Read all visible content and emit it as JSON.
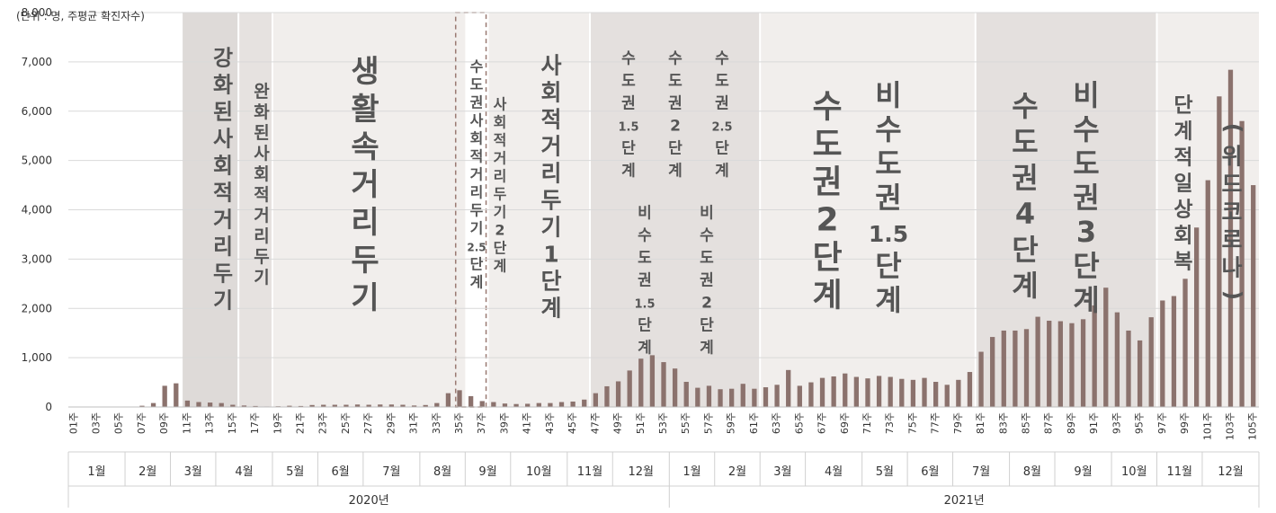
{
  "chart_data": {
    "type": "bar",
    "unit_label": "(단위 : 명, 주평균 확진자수)",
    "ylim": [
      0,
      8000
    ],
    "y_ticks": [
      "0",
      "1,000",
      "2,000",
      "3,000",
      "4,000",
      "5,000",
      "6,000",
      "7,000",
      "8,000"
    ],
    "bar_color": "#8b726d",
    "categories": [
      "01주",
      "02주",
      "03주",
      "04주",
      "05주",
      "06주",
      "07주",
      "08주",
      "09주",
      "10주",
      "11주",
      "12주",
      "13주",
      "14주",
      "15주",
      "16주",
      "17주",
      "18주",
      "19주",
      "20주",
      "21주",
      "22주",
      "23주",
      "24주",
      "25주",
      "26주",
      "27주",
      "28주",
      "29주",
      "30주",
      "31주",
      "32주",
      "33주",
      "34주",
      "35주",
      "36주",
      "37주",
      "38주",
      "39주",
      "40주",
      "41주",
      "42주",
      "43주",
      "44주",
      "45주",
      "46주",
      "47주",
      "48주",
      "49주",
      "50주",
      "51주",
      "52주",
      "53주",
      "54주",
      "55주",
      "56주",
      "57주",
      "58주",
      "59주",
      "60주",
      "61주",
      "62주",
      "63주",
      "64주",
      "65주",
      "66주",
      "67주",
      "68주",
      "69주",
      "70주",
      "71주",
      "72주",
      "73주",
      "74주",
      "75주",
      "76주",
      "77주",
      "78주",
      "79주",
      "80주",
      "81주",
      "82주",
      "83주",
      "84주",
      "85주",
      "86주",
      "87주",
      "88주",
      "89주",
      "90주",
      "91주",
      "92주",
      "93주",
      "94주",
      "95주",
      "96주",
      "97주",
      "98주",
      "99주",
      "100주",
      "101주",
      "102주",
      "103주",
      "104주",
      "105주"
    ],
    "values": [
      0,
      0,
      3,
      5,
      3,
      5,
      25,
      80,
      430,
      480,
      130,
      100,
      90,
      80,
      45,
      30,
      20,
      10,
      15,
      25,
      20,
      40,
      45,
      45,
      45,
      50,
      45,
      50,
      50,
      45,
      30,
      40,
      80,
      280,
      340,
      220,
      120,
      100,
      70,
      60,
      65,
      80,
      80,
      100,
      110,
      150,
      280,
      420,
      520,
      740,
      980,
      1050,
      910,
      780,
      510,
      390,
      430,
      360,
      370,
      470,
      370,
      400,
      450,
      750,
      430,
      500,
      590,
      620,
      680,
      610,
      580,
      630,
      610,
      570,
      550,
      590,
      510,
      450,
      550,
      710,
      1120,
      1420,
      1550,
      1550,
      1580,
      1830,
      1750,
      1740,
      1700,
      1780,
      2060,
      2420,
      1920,
      1550,
      1350,
      1820,
      2160,
      2250,
      2600,
      3640,
      4600,
      6300,
      6840,
      5800,
      4500
    ],
    "tick_labels_shown": [
      "01주",
      "03주",
      "05주",
      "07주",
      "09주",
      "11주",
      "13주",
      "15주",
      "17주",
      "19주",
      "21주",
      "23주",
      "25주",
      "27주",
      "29주",
      "31주",
      "33주",
      "35주",
      "37주",
      "39주",
      "41주",
      "43주",
      "45주",
      "47주",
      "49주",
      "51주",
      "53주",
      "55주",
      "57주",
      "59주",
      "61주",
      "63주",
      "65주",
      "67주",
      "69주",
      "71주",
      "73주",
      "75주",
      "77주",
      "79주",
      "81주",
      "83주",
      "85주",
      "87주",
      "89주",
      "91주",
      "93주",
      "95주",
      "97주",
      "99주",
      "101주",
      "103주",
      "105주"
    ],
    "months": [
      {
        "label": "1월",
        "from": 1,
        "to": 5
      },
      {
        "label": "2월",
        "from": 6,
        "to": 9
      },
      {
        "label": "3월",
        "from": 10,
        "to": 13
      },
      {
        "label": "4월",
        "from": 14,
        "to": 18
      },
      {
        "label": "5월",
        "from": 19,
        "to": 22
      },
      {
        "label": "6월",
        "from": 23,
        "to": 26
      },
      {
        "label": "7월",
        "from": 27,
        "to": 31
      },
      {
        "label": "8월",
        "from": 32,
        "to": 35
      },
      {
        "label": "9월",
        "from": 36,
        "to": 39
      },
      {
        "label": "10월",
        "from": 40,
        "to": 44
      },
      {
        "label": "11월",
        "from": 45,
        "to": 48
      },
      {
        "label": "12월",
        "from": 49,
        "to": 53
      },
      {
        "label": "1월",
        "from": 54,
        "to": 57
      },
      {
        "label": "2월",
        "from": 58,
        "to": 61
      },
      {
        "label": "3월",
        "from": 62,
        "to": 65
      },
      {
        "label": "4월",
        "from": 66,
        "to": 70
      },
      {
        "label": "5월",
        "from": 71,
        "to": 74
      },
      {
        "label": "6월",
        "from": 75,
        "to": 78
      },
      {
        "label": "7월",
        "from": 79,
        "to": 83
      },
      {
        "label": "8월",
        "from": 84,
        "to": 87
      },
      {
        "label": "9월",
        "from": 88,
        "to": 92
      },
      {
        "label": "10월",
        "from": 93,
        "to": 96
      },
      {
        "label": "11월",
        "from": 97,
        "to": 100
      },
      {
        "label": "12월",
        "from": 101,
        "to": 105
      }
    ],
    "years": [
      {
        "label": "2020년",
        "from": 1,
        "to": 53
      },
      {
        "label": "2021년",
        "from": 54,
        "to": 105
      }
    ],
    "phases": [
      {
        "id": "phase-1",
        "from": 11,
        "to": 15,
        "fill": "#dedad8",
        "columns": [
          {
            "text": "강화된 사회적 거리두기"
          }
        ]
      },
      {
        "id": "phase-2",
        "from": 16,
        "to": 18,
        "fill": "#e6e2e0",
        "columns": [
          {
            "text": "완화된 사회적 거리두기"
          }
        ]
      },
      {
        "id": "phase-3",
        "from": 19,
        "to": 35,
        "fill": "#f1eeec",
        "columns": [
          {
            "text": "생활속 거리두기"
          }
        ]
      },
      {
        "id": "phase-4",
        "from": 35,
        "to": 37,
        "fill": "none",
        "dashed": true,
        "columns": [
          {
            "text": "수도권 사회적 거리두기 2.5단계"
          },
          {
            "text": "사회적 거리두기 2단계"
          }
        ]
      },
      {
        "id": "phase-5",
        "from": 38,
        "to": 46,
        "fill": "#f1eeec",
        "columns": [
          {
            "text": "사회적 거리두기 1단계"
          }
        ]
      },
      {
        "id": "phase-6",
        "from": 47,
        "to": 61,
        "fill": "#e4e0de",
        "columns": [
          {
            "text": "수도권 1.5 단계"
          },
          {
            "text": "비수도권 1.5 단계"
          },
          {
            "text": "수도권 2 단계"
          },
          {
            "text": "비수도권 2 단계"
          },
          {
            "text": "수도권 2.5 단계"
          }
        ]
      },
      {
        "id": "phase-7",
        "from": 62,
        "to": 80,
        "fill": "#f1eeec",
        "columns": [
          {
            "text": "수도권 2단계"
          },
          {
            "text": "비수도권 1.5 단계"
          }
        ]
      },
      {
        "id": "phase-8",
        "from": 81,
        "to": 96,
        "fill": "#e4e0de",
        "columns": [
          {
            "text": "수도권 4단계"
          },
          {
            "text": "비수도권 3단계"
          }
        ]
      },
      {
        "id": "phase-9",
        "from": 97,
        "to": 105,
        "fill": "#f1eeec",
        "columns": [
          {
            "text": "단계적 일상회복"
          },
          {
            "text": "(위드 코로나)"
          }
        ]
      }
    ]
  }
}
